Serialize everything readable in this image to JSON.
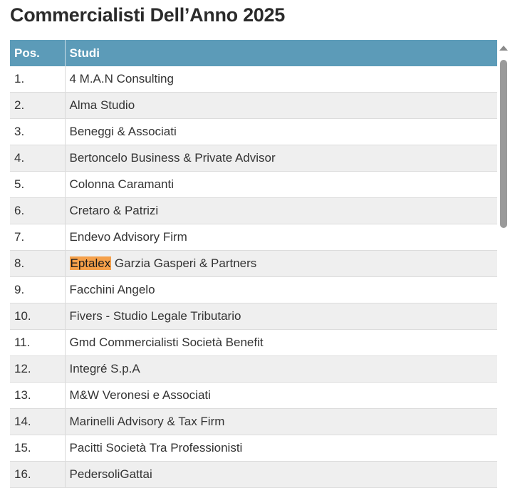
{
  "page": {
    "title": "Commercialisti Dell’Anno 2025"
  },
  "table": {
    "headers": {
      "pos": "Pos.",
      "studi": "Studi"
    },
    "rows": [
      {
        "pos": "1.",
        "pre": "",
        "highlight": "",
        "rest": "4 M.A.N Consulting"
      },
      {
        "pos": "2.",
        "pre": "",
        "highlight": "",
        "rest": "Alma Studio"
      },
      {
        "pos": "3.",
        "pre": "",
        "highlight": "",
        "rest": "Beneggi & Associati"
      },
      {
        "pos": "4.",
        "pre": "",
        "highlight": "",
        "rest": "Bertoncelo Business & Private Advisor"
      },
      {
        "pos": "5.",
        "pre": "",
        "highlight": "",
        "rest": "Colonna Caramanti"
      },
      {
        "pos": "6.",
        "pre": "",
        "highlight": "",
        "rest": "Cretaro & Patrizi"
      },
      {
        "pos": "7.",
        "pre": "",
        "highlight": "",
        "rest": "Endevo Advisory Firm"
      },
      {
        "pos": "8.",
        "pre": "",
        "highlight": "Eptalex",
        "rest": " Garzia Gasperi & Partners"
      },
      {
        "pos": "9.",
        "pre": "",
        "highlight": "",
        "rest": "Facchini Angelo"
      },
      {
        "pos": "10.",
        "pre": "",
        "highlight": "",
        "rest": "Fivers - Studio Legale Tributario"
      },
      {
        "pos": "11.",
        "pre": "",
        "highlight": "",
        "rest": "Gmd Commercialisti Società Benefit"
      },
      {
        "pos": "12.",
        "pre": "",
        "highlight": "",
        "rest": "Integré S.p.A"
      },
      {
        "pos": "13.",
        "pre": "",
        "highlight": "",
        "rest": "M&W Veronesi e Associati"
      },
      {
        "pos": "14.",
        "pre": "",
        "highlight": "",
        "rest": "Marinelli Advisory & Tax Firm"
      },
      {
        "pos": "15.",
        "pre": "",
        "highlight": "",
        "rest": "Pacitti Società Tra Professionisti"
      },
      {
        "pos": "16.",
        "pre": "",
        "highlight": "",
        "rest": "PedersoliGattai"
      }
    ]
  },
  "colors": {
    "header_bg": "#5c9bb8",
    "highlight": "#f5a04a",
    "stripe": "#efefef"
  },
  "icons": {
    "scroll_up": "triangle-up-icon"
  }
}
